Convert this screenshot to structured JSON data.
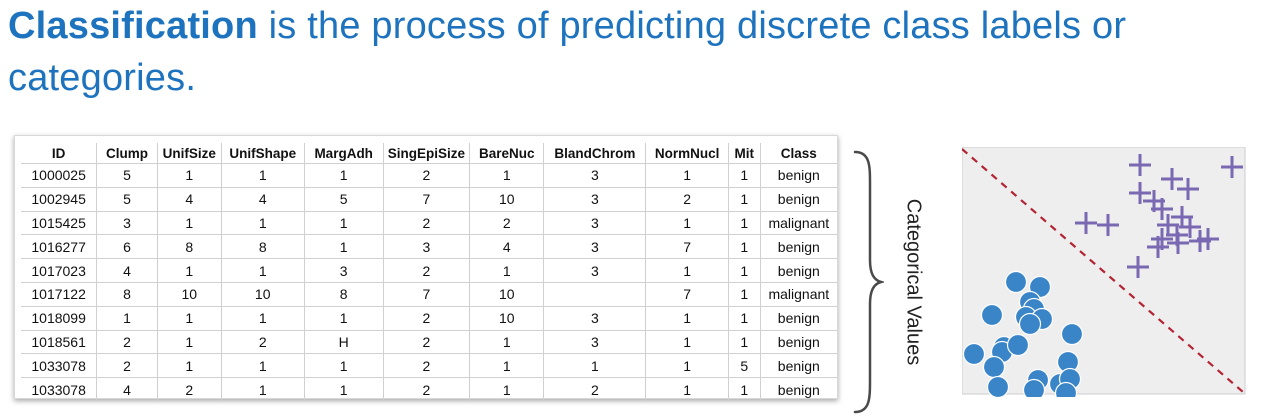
{
  "headline": {
    "bold": "Classification",
    "rest": " is the process of predicting discrete class labels or categories."
  },
  "table": {
    "columns": [
      "ID",
      "Clump",
      "UnifSize",
      "UnifShape",
      "MargAdh",
      "SingEpiSize",
      "BareNuc",
      "BlandChrom",
      "NormNucl",
      "Mit",
      "Class"
    ],
    "rows": [
      [
        "1000025",
        "5",
        "1",
        "1",
        "1",
        "2",
        "1",
        "3",
        "1",
        "1",
        "benign"
      ],
      [
        "1002945",
        "5",
        "4",
        "4",
        "5",
        "7",
        "10",
        "3",
        "2",
        "1",
        "benign"
      ],
      [
        "1015425",
        "3",
        "1",
        "1",
        "1",
        "2",
        "2",
        "3",
        "1",
        "1",
        "malignant"
      ],
      [
        "1016277",
        "6",
        "8",
        "8",
        "1",
        "3",
        "4",
        "3",
        "7",
        "1",
        "benign"
      ],
      [
        "1017023",
        "4",
        "1",
        "1",
        "3",
        "2",
        "1",
        "3",
        "1",
        "1",
        "benign"
      ],
      [
        "1017122",
        "8",
        "10",
        "10",
        "8",
        "7",
        "10",
        "",
        "7",
        "1",
        "malignant"
      ],
      [
        "1018099",
        "1",
        "1",
        "1",
        "1",
        "2",
        "10",
        "3",
        "1",
        "1",
        "benign"
      ],
      [
        "1018561",
        "2",
        "1",
        "2",
        "H",
        "2",
        "1",
        "3",
        "1",
        "1",
        "benign"
      ],
      [
        "1033078",
        "2",
        "1",
        "1",
        "1",
        "2",
        "1",
        "1",
        "1",
        "5",
        "benign"
      ],
      [
        "1033078",
        "4",
        "2",
        "1",
        "1",
        "2",
        "1",
        "2",
        "1",
        "1",
        "benign"
      ]
    ]
  },
  "brace_label": "Categorical Values",
  "colors": {
    "headline": "#1e73be",
    "circle_class": "#3a85c8",
    "plus_class": "#7b68b3",
    "boundary": "#b22434",
    "plot_background": "#eeeeee"
  },
  "scatter": {
    "description_icons": [
      "circle-marker",
      "plus-marker"
    ],
    "boundary_style": "dashed diagonal"
  }
}
